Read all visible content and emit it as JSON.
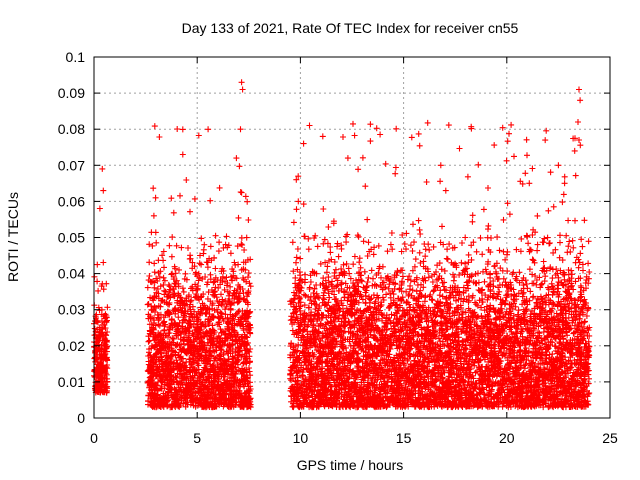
{
  "chart_data": {
    "type": "scatter",
    "title": "Day 133 of 2021, Rate Of TEC Index for receiver cn55",
    "xlabel": "GPS time / hours",
    "ylabel": "ROTI / TECUs",
    "xlim": [
      0,
      25
    ],
    "ylim": [
      0,
      0.1
    ],
    "x_ticks": [
      0,
      5,
      10,
      15,
      20,
      25
    ],
    "y_ticks": [
      0,
      0.01,
      0.02,
      0.03,
      0.04,
      0.05,
      0.06,
      0.07,
      0.08,
      0.09,
      0.1
    ],
    "grid": true,
    "marker": "+",
    "marker_color": "#ff0000",
    "data_segments": [
      {
        "x_start": 0.0,
        "x_end": 0.65,
        "y_min": 0.007,
        "y_typical_max": 0.035,
        "y_peak": 0.069
      },
      {
        "x_start": 2.6,
        "x_end": 7.6,
        "y_min": 0.003,
        "y_typical_max": 0.045,
        "y_peak": 0.093
      },
      {
        "x_start": 9.5,
        "x_end": 24.0,
        "y_min": 0.003,
        "y_typical_max": 0.045,
        "y_peak": 0.091
      }
    ],
    "highlight_points": [
      {
        "x": 7.15,
        "y": 0.093
      },
      {
        "x": 7.2,
        "y": 0.091
      },
      {
        "x": 7.1,
        "y": 0.08
      },
      {
        "x": 6.9,
        "y": 0.072
      },
      {
        "x": 4.3,
        "y": 0.073
      },
      {
        "x": 23.5,
        "y": 0.091
      },
      {
        "x": 23.55,
        "y": 0.088
      },
      {
        "x": 23.45,
        "y": 0.082
      },
      {
        "x": 23.5,
        "y": 0.077
      },
      {
        "x": 22.5,
        "y": 0.07
      },
      {
        "x": 12.3,
        "y": 0.072
      },
      {
        "x": 16.8,
        "y": 0.07
      },
      {
        "x": 0.4,
        "y": 0.069
      },
      {
        "x": 9.8,
        "y": 0.066
      },
      {
        "x": 0.45,
        "y": 0.063
      },
      {
        "x": 2.9,
        "y": 0.056
      },
      {
        "x": 9.9,
        "y": 0.06
      },
      {
        "x": 22.8,
        "y": 0.065
      }
    ]
  }
}
